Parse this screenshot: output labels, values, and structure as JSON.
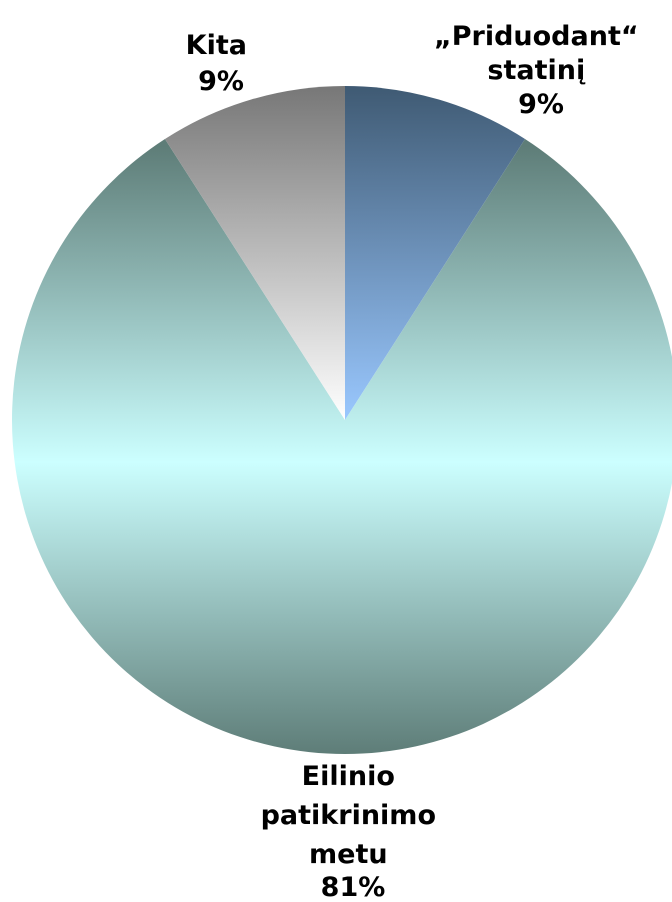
{
  "chart_data": {
    "type": "pie",
    "title": "",
    "start_angle_deg": 0,
    "direction": "clockwise",
    "slices": [
      {
        "label_lines": [
          "„Priduodant“",
          "statinį"
        ],
        "value": 9,
        "percent_label": "9%",
        "color_top": "#3f5a73",
        "color_bottom": "#9ac8ff"
      },
      {
        "label_lines": [
          "Eilinio",
          "patikrinimo",
          "metu"
        ],
        "value": 81,
        "percent_label": "81%",
        "color_edge": "#5e7d78",
        "color_mid": "#ccffff"
      },
      {
        "label_lines": [
          "Kita"
        ],
        "value": 9,
        "percent_label": "9%",
        "color_top": "#777777",
        "color_bottom": "#ffffff"
      }
    ]
  }
}
